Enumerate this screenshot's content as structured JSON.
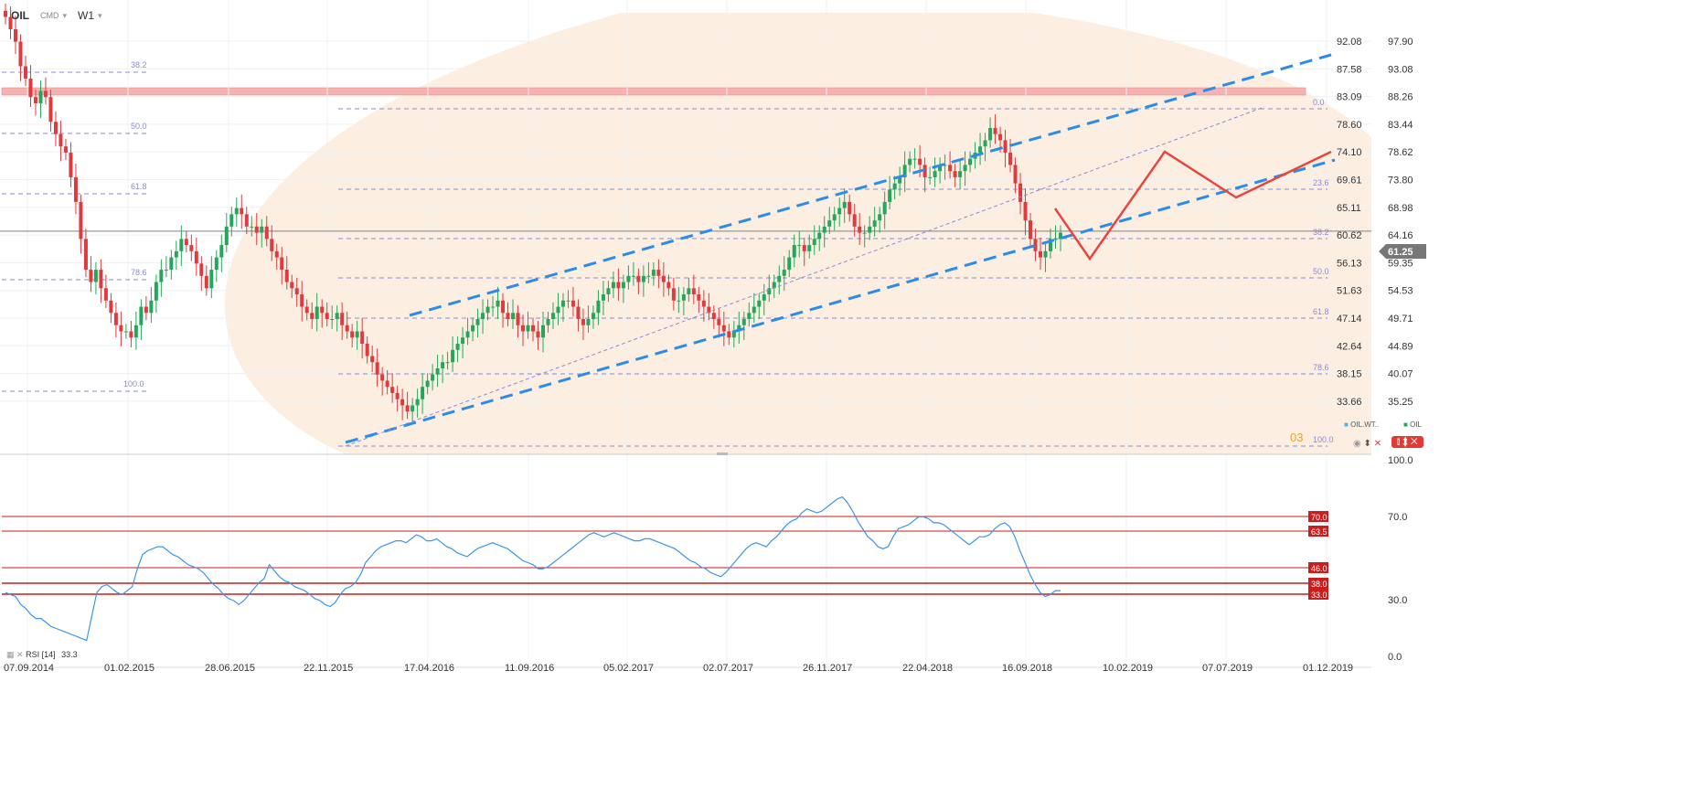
{
  "header": {
    "symbol": "OIL",
    "exchange": "CMD",
    "timeframe": "W1"
  },
  "legend": {
    "left_label": "OIL.WT..",
    "right_label": "OIL"
  },
  "price_tag": "61.25",
  "watermark": "03",
  "rsi_label": "RSI [14]",
  "rsi_value": "33.3",
  "colors": {
    "up": "#26a65b",
    "down": "#e0393e",
    "channel": "#2d8ce8",
    "projection": "#e8453c",
    "fib": "#8a8ad4",
    "band": "#fbe9d8",
    "resistance": "#f4b3b0",
    "rsi_line": "#3d95e6",
    "rsi_level": "#c81e1e"
  },
  "chart_data": [
    {
      "type": "line",
      "chart": "price",
      "price_axis_left": [
        "92.08",
        "87.58",
        "83.09",
        "78.60",
        "74.10",
        "69.61",
        "65.11",
        "60.62",
        "56.13",
        "51.63",
        "47.14",
        "42.64",
        "38.15",
        "33.66"
      ],
      "price_axis_right": [
        "97.90",
        "93.08",
        "88.26",
        "83.44",
        "78.62",
        "73.80",
        "68.98",
        "64.16",
        "59.35",
        "54.53",
        "49.71",
        "44.89",
        "40.07",
        "35.25"
      ],
      "x_labels": [
        "07.09.2014",
        "01.02.2015",
        "28.06.2015",
        "22.11.2015",
        "17.04.2016",
        "11.09.2016",
        "05.02.2017",
        "02.07.2017",
        "26.11.2017",
        "22.04.2018",
        "16.09.2018",
        "10.02.2019",
        "07.07.2019",
        "01.12.2019"
      ],
      "fib_left": [
        "38.2",
        "50.0",
        "61.8",
        "78.6",
        "100.0"
      ],
      "fib_right": [
        "0.0",
        "23.6",
        "38.2",
        "50.0",
        "61.8",
        "78.6",
        "100.0"
      ],
      "current_price": 61.25,
      "closes": [
        96,
        94,
        92,
        88,
        86,
        83,
        82,
        84,
        83,
        79,
        77,
        75,
        74,
        70,
        66,
        60,
        55,
        53,
        55,
        52,
        50,
        48,
        46,
        45,
        45,
        44,
        46,
        49,
        48,
        50,
        53,
        55,
        55,
        57,
        58,
        60,
        59,
        58,
        56,
        54,
        52,
        55,
        57,
        59,
        62,
        64,
        65,
        64,
        62,
        62,
        61,
        62,
        60,
        58,
        57,
        55,
        53,
        52,
        51,
        49,
        48,
        47,
        49,
        48,
        47,
        47,
        48,
        46,
        45,
        44,
        45,
        43,
        41,
        40,
        38,
        37,
        36,
        35,
        34,
        33,
        32,
        33,
        34,
        36,
        37,
        38,
        39,
        40,
        40,
        42,
        43,
        44,
        45,
        46,
        47,
        48,
        49,
        49,
        50,
        48,
        47,
        48,
        46,
        45,
        46,
        45,
        44,
        46,
        47,
        48,
        49,
        50,
        50,
        49,
        47,
        46,
        47,
        48,
        50,
        51,
        52,
        53,
        52,
        53,
        54,
        54,
        53,
        54,
        54,
        55,
        54,
        53,
        52,
        50,
        50,
        51,
        52,
        51,
        50,
        49,
        48,
        47,
        46,
        45,
        44,
        45,
        46,
        47,
        48,
        49,
        50,
        51,
        52,
        53,
        54,
        55,
        57,
        59,
        59,
        58,
        59,
        60,
        61,
        62,
        63,
        64,
        65,
        66,
        64,
        62,
        61,
        61,
        62,
        63,
        64,
        66,
        68,
        69,
        70,
        72,
        73,
        73,
        72,
        70,
        70,
        71,
        72,
        72,
        71,
        70,
        71,
        72,
        73,
        74,
        75,
        76,
        78,
        77,
        76,
        74,
        72,
        69,
        66,
        63,
        60,
        58,
        57,
        58,
        60,
        60,
        61
      ],
      "projection": [
        [
          1154,
          228
        ],
        [
          1192,
          283
        ],
        [
          1274,
          166
        ],
        [
          1352,
          216
        ],
        [
          1456,
          166
        ]
      ]
    },
    {
      "type": "line",
      "chart": "rsi",
      "axis": [
        "100.0",
        "70.0",
        "30.0",
        "0.0"
      ],
      "levels": [
        "70.0",
        "63.5",
        "46.0",
        "38.0",
        "33.0"
      ],
      "values": [
        32,
        31,
        30,
        26,
        24,
        21,
        19,
        19,
        17,
        15,
        14,
        13,
        12,
        11,
        10,
        9,
        8,
        20,
        32,
        35,
        36,
        34,
        32,
        31,
        33,
        35,
        44,
        51,
        53,
        54,
        55,
        55,
        53,
        51,
        50,
        48,
        46,
        45,
        44,
        42,
        39,
        36,
        34,
        31,
        29,
        28,
        26,
        28,
        31,
        34,
        37,
        39,
        46,
        43,
        40,
        38,
        37,
        35,
        34,
        33,
        31,
        29,
        28,
        26,
        25,
        27,
        31,
        34,
        35,
        37,
        41,
        47,
        50,
        53,
        55,
        56,
        57,
        58,
        58,
        57,
        59,
        61,
        60,
        58,
        58,
        59,
        57,
        55,
        54,
        52,
        51,
        50,
        52,
        54,
        55,
        56,
        57,
        56,
        55,
        54,
        52,
        50,
        48,
        47,
        46,
        44,
        44,
        45,
        47,
        49,
        51,
        53,
        55,
        57,
        59,
        61,
        62,
        61,
        60,
        61,
        62,
        61,
        60,
        59,
        58,
        58,
        59,
        59,
        58,
        57,
        56,
        55,
        54,
        52,
        50,
        48,
        47,
        45,
        44,
        42,
        41,
        40,
        42,
        45,
        48,
        51,
        54,
        56,
        57,
        56,
        55,
        58,
        60,
        63,
        66,
        68,
        69,
        72,
        74,
        73,
        72,
        73,
        75,
        77,
        79,
        80,
        77,
        73,
        68,
        64,
        60,
        58,
        55,
        54,
        55,
        60,
        64,
        65,
        66,
        68,
        70,
        70,
        69,
        67,
        67,
        66,
        64,
        62,
        60,
        58,
        56,
        58,
        60,
        60,
        61,
        64,
        66,
        67,
        65,
        60,
        53,
        47,
        41,
        36,
        32,
        30,
        31,
        33,
        33
      ]
    }
  ]
}
